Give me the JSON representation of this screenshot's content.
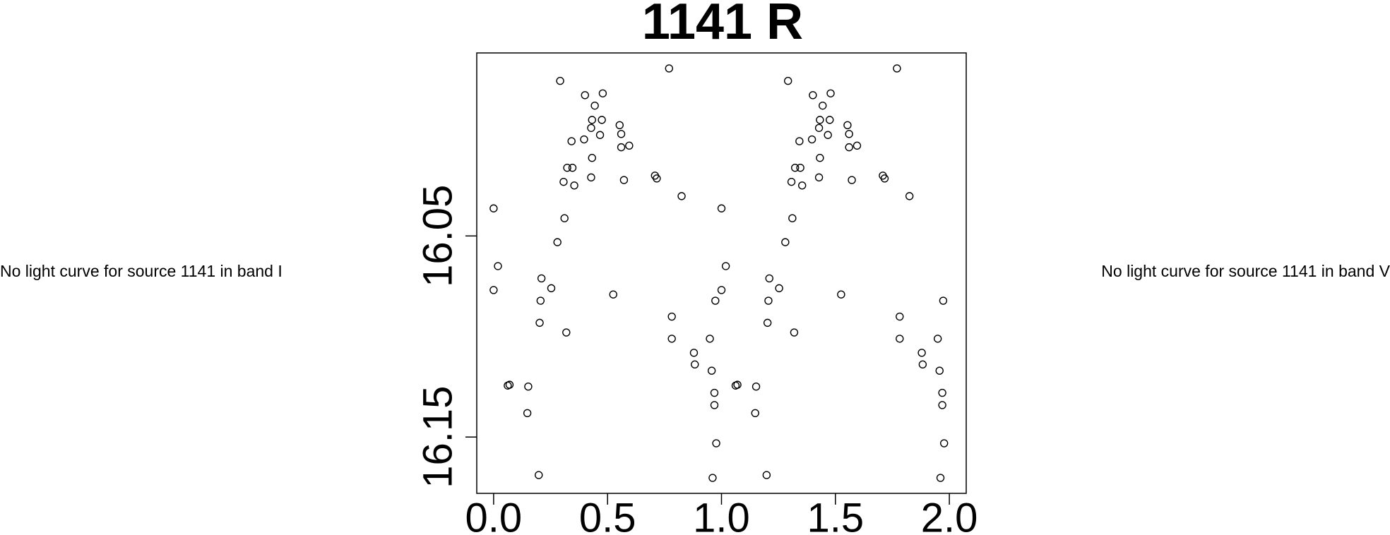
{
  "panels": {
    "left_message": "No light curve for source 1141 in band I",
    "right_message": "No light curve for source 1141 in band V"
  },
  "chart_data": {
    "type": "scatter",
    "title": "1141 R",
    "x": [
      0.0,
      0.019,
      0.0,
      0.062,
      0.07,
      0.152,
      0.148,
      0.202,
      0.206,
      0.21,
      0.253,
      0.198,
      0.28,
      0.292,
      0.307,
      0.311,
      0.323,
      0.319,
      0.342,
      0.346,
      0.354,
      0.397,
      0.401,
      0.428,
      0.432,
      0.444,
      0.432,
      0.428,
      0.467,
      0.479,
      0.475,
      0.525,
      0.553,
      0.56,
      0.56,
      0.595,
      0.572,
      0.708,
      0.716,
      0.77,
      0.825,
      0.782,
      0.782,
      0.879,
      0.883,
      0.949,
      0.957,
      0.969,
      0.969,
      0.977,
      0.961,
      0.973,
      1.0,
      1.019,
      1.0,
      1.062,
      1.07,
      1.152,
      1.148,
      1.202,
      1.206,
      1.21,
      1.253,
      1.198,
      1.28,
      1.292,
      1.307,
      1.311,
      1.323,
      1.319,
      1.342,
      1.346,
      1.354,
      1.397,
      1.401,
      1.428,
      1.432,
      1.444,
      1.432,
      1.428,
      1.467,
      1.479,
      1.475,
      1.525,
      1.553,
      1.56,
      1.56,
      1.595,
      1.572,
      1.708,
      1.716,
      1.77,
      1.825,
      1.782,
      1.782,
      1.879,
      1.883,
      1.949,
      1.957,
      1.969,
      1.969,
      1.977,
      1.961,
      1.973
    ],
    "values": [
      16.0363,
      16.065,
      16.0769,
      16.1244,
      16.124,
      16.1249,
      16.1381,
      16.0932,
      16.0822,
      16.0711,
      16.076,
      16.1689,
      16.0531,
      15.9729,
      16.0231,
      16.0412,
      16.0161,
      16.098,
      16.0029,
      16.0161,
      16.0249,
      16.002,
      15.98,
      15.9963,
      15.9923,
      15.9852,
      16.0112,
      16.0209,
      15.9998,
      15.9791,
      15.9923,
      16.0791,
      15.9949,
      15.9993,
      16.0059,
      16.0051,
      16.0222,
      16.02,
      16.0214,
      15.9667,
      16.0302,
      16.0901,
      16.1011,
      16.1081,
      16.1139,
      16.1011,
      16.117,
      16.128,
      16.1341,
      16.1531,
      16.1703,
      16.0822,
      16.0363,
      16.065,
      16.0769,
      16.1244,
      16.124,
      16.1249,
      16.1381,
      16.0932,
      16.0822,
      16.0711,
      16.076,
      16.1689,
      16.0531,
      15.9729,
      16.0231,
      16.0412,
      16.0161,
      16.098,
      16.0029,
      16.0161,
      16.0249,
      16.002,
      15.98,
      15.9963,
      15.9923,
      15.9852,
      16.0112,
      16.0209,
      15.9998,
      15.9791,
      15.9923,
      16.0791,
      15.9949,
      15.9993,
      16.0059,
      16.0051,
      16.0222,
      16.02,
      16.0214,
      15.9667,
      16.0302,
      16.0901,
      16.1011,
      16.1081,
      16.1139,
      16.1011,
      16.117,
      16.128,
      16.1341,
      16.1531,
      16.1703,
      16.0822
    ],
    "color": "#000000",
    "xlim": [
      -0.074,
      2.074
    ],
    "ylim": [
      16.178,
      15.959
    ],
    "xticks": [
      {
        "value": 0,
        "label": "0.0"
      },
      {
        "value": 0.5,
        "label": "0.5"
      },
      {
        "value": 1,
        "label": "1.0"
      },
      {
        "value": 1.5,
        "label": "1.5"
      },
      {
        "value": 2,
        "label": "2.0"
      }
    ],
    "yticks": [
      16.05,
      16.15
    ]
  }
}
